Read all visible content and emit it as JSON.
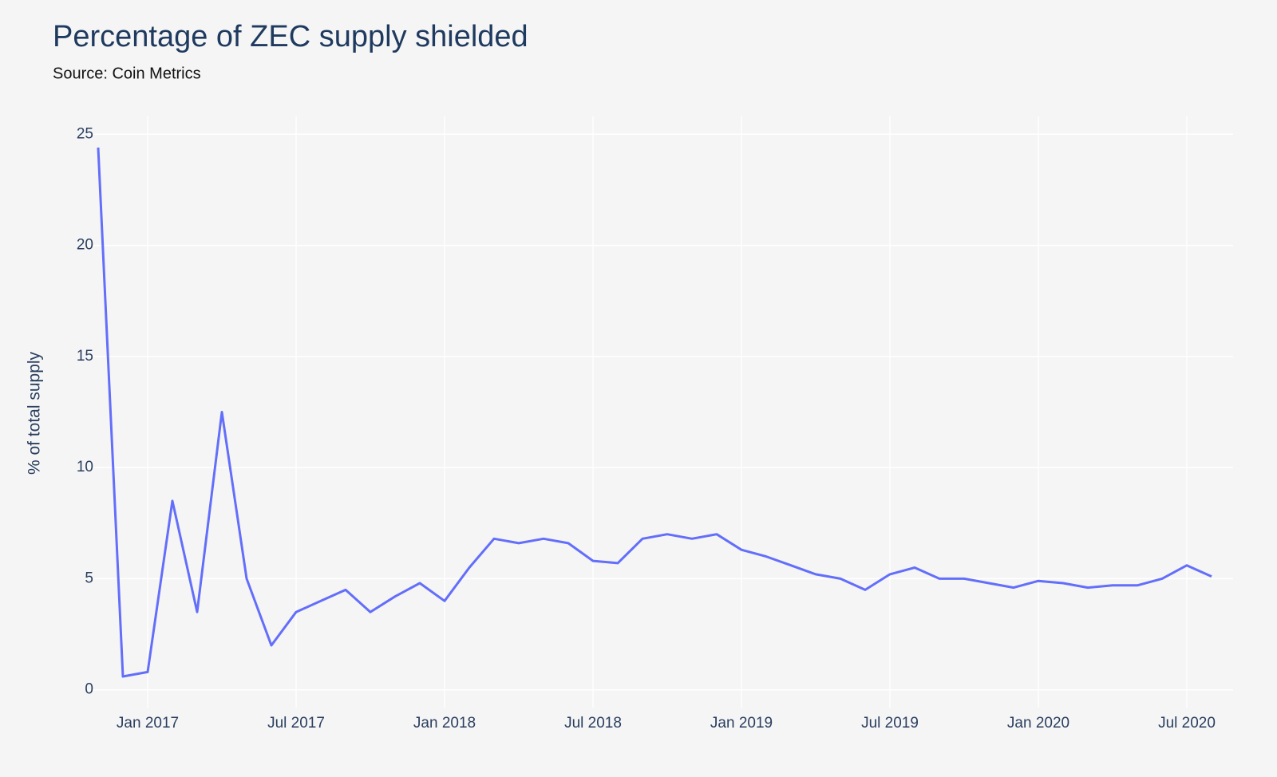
{
  "chart_data": {
    "type": "line",
    "title": "Percentage of ZEC supply shielded",
    "subtitle": "Source: Coin Metrics",
    "y_label": "% of total supply",
    "x": [
      "2016-11",
      "2016-12",
      "2017-01",
      "2017-02",
      "2017-03",
      "2017-04",
      "2017-05",
      "2017-06",
      "2017-07",
      "2017-08",
      "2017-09",
      "2017-10",
      "2017-11",
      "2017-12",
      "2018-01",
      "2018-02",
      "2018-03",
      "2018-04",
      "2018-05",
      "2018-06",
      "2018-07",
      "2018-08",
      "2018-09",
      "2018-10",
      "2018-11",
      "2018-12",
      "2019-01",
      "2019-02",
      "2019-03",
      "2019-04",
      "2019-05",
      "2019-06",
      "2019-07",
      "2019-08",
      "2019-09",
      "2019-10",
      "2019-11",
      "2019-12",
      "2020-01",
      "2020-02",
      "2020-03",
      "2020-04",
      "2020-05",
      "2020-06",
      "2020-07",
      "2020-08"
    ],
    "series": [
      {
        "name": "% of total supply",
        "color": "#636efa",
        "values": [
          24.4,
          0.6,
          0.8,
          8.5,
          3.5,
          12.5,
          5,
          2,
          3.5,
          4,
          4.5,
          3.5,
          4.2,
          4.8,
          4,
          5.5,
          6.8,
          6.6,
          6.8,
          6.6,
          5.8,
          5.7,
          6.8,
          7,
          6.8,
          7,
          6.3,
          6,
          5.6,
          5.2,
          5,
          4.5,
          5.2,
          5.5,
          5,
          5,
          4.8,
          4.6,
          4.9,
          4.8,
          4.6,
          4.7,
          4.7,
          5,
          5.6,
          5.1
        ]
      }
    ],
    "xlim": [
      "2016-11",
      "2020-08"
    ],
    "xticks": [
      {
        "value": "2017-01",
        "label": "Jan 2017"
      },
      {
        "value": "2017-07",
        "label": "Jul 2017"
      },
      {
        "value": "2018-01",
        "label": "Jan 2018"
      },
      {
        "value": "2018-07",
        "label": "Jul 2018"
      },
      {
        "value": "2019-01",
        "label": "Jan 2019"
      },
      {
        "value": "2019-07",
        "label": "Jul 2019"
      },
      {
        "value": "2020-01",
        "label": "Jan 2020"
      },
      {
        "value": "2020-07",
        "label": "Jul 2020"
      }
    ],
    "ylim": [
      -0.8,
      25.8
    ],
    "yticks": [
      0,
      5,
      10,
      15,
      20,
      25
    ],
    "grid": true
  }
}
